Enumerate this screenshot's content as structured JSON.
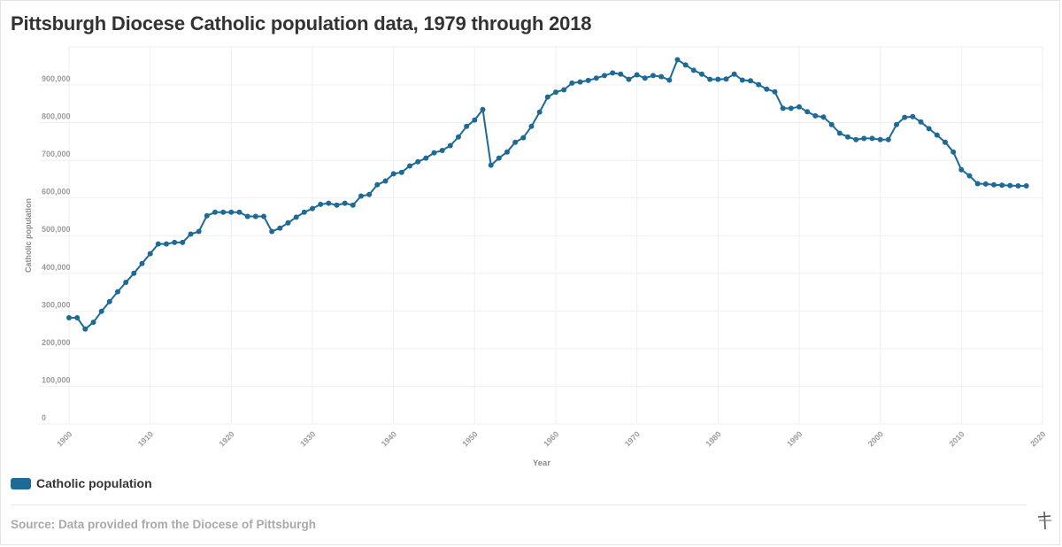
{
  "title": "Pittsburgh Diocese Catholic population data, 1979 through 2018",
  "legend": {
    "label": "Catholic population",
    "color": "#1d6a96"
  },
  "source": "Source: Data provided from the Diocese of Pittsburgh",
  "logo_icon": "flourish-logo-icon",
  "chart_data": {
    "type": "line",
    "title": "Pittsburgh Diocese Catholic population data, 1979 through 2018",
    "xlabel": "Year",
    "ylabel": "Catholic population",
    "xlim": [
      1900,
      2020
    ],
    "ylim": [
      0,
      1000000
    ],
    "x_ticks": [
      1900,
      1910,
      1920,
      1930,
      1940,
      1950,
      1960,
      1970,
      1980,
      1990,
      2000,
      2010,
      2020
    ],
    "x_tick_labels": [
      "1900",
      "1910",
      "1920",
      "1930",
      "1940",
      "1950",
      "1960",
      "1970",
      "1980",
      "1990",
      "2000",
      "2010",
      "2020"
    ],
    "y_ticks": [
      0,
      100000,
      200000,
      300000,
      400000,
      500000,
      600000,
      700000,
      800000,
      900000
    ],
    "y_tick_labels": [
      "0",
      "100,000",
      "200,000",
      "300,000",
      "400,000",
      "500,000",
      "600,000",
      "700,000",
      "800,000",
      "900,000"
    ],
    "grid": true,
    "legend_position": "bottom-left",
    "series": [
      {
        "name": "Catholic population",
        "color": "#1d6a96",
        "x": [
          1900,
          1901,
          1902,
          1903,
          1904,
          1905,
          1906,
          1907,
          1908,
          1909,
          1910,
          1911,
          1912,
          1913,
          1914,
          1915,
          1916,
          1917,
          1918,
          1919,
          1920,
          1921,
          1922,
          1923,
          1924,
          1925,
          1926,
          1927,
          1928,
          1929,
          1930,
          1931,
          1932,
          1933,
          1934,
          1935,
          1936,
          1937,
          1938,
          1939,
          1940,
          1941,
          1942,
          1943,
          1944,
          1945,
          1946,
          1947,
          1948,
          1949,
          1950,
          1951,
          1952,
          1953,
          1954,
          1955,
          1956,
          1957,
          1958,
          1959,
          1960,
          1961,
          1962,
          1963,
          1964,
          1965,
          1966,
          1967,
          1968,
          1969,
          1970,
          1971,
          1972,
          1973,
          1974,
          1975,
          1976,
          1977,
          1978,
          1979,
          1980,
          1981,
          1982,
          1983,
          1984,
          1985,
          1986,
          1987,
          1988,
          1989,
          1990,
          1991,
          1992,
          1993,
          1994,
          1995,
          1996,
          1997,
          1998,
          1999,
          2000,
          2001,
          2002,
          2003,
          2004,
          2005,
          2006,
          2007,
          2008,
          2009,
          2010,
          2011,
          2012,
          2013,
          2014,
          2015,
          2016,
          2017,
          2018
        ],
        "values": [
          282000,
          282000,
          252000,
          270000,
          299000,
          325000,
          351000,
          376000,
          400000,
          426000,
          452000,
          478000,
          478000,
          482000,
          482000,
          504000,
          511000,
          553000,
          562000,
          562000,
          562000,
          562000,
          551000,
          551000,
          551000,
          511000,
          520000,
          534000,
          549000,
          562000,
          572000,
          583000,
          586000,
          581000,
          586000,
          581000,
          605000,
          609000,
          635000,
          645000,
          664000,
          668000,
          685000,
          696000,
          706000,
          720000,
          726000,
          739000,
          762000,
          790000,
          807000,
          835000,
          687000,
          706000,
          722000,
          748000,
          760000,
          790000,
          828000,
          868000,
          881000,
          887000,
          905000,
          908000,
          912000,
          918000,
          925000,
          932000,
          929000,
          915000,
          927000,
          918000,
          925000,
          922000,
          913000,
          967000,
          953000,
          939000,
          929000,
          915000,
          915000,
          916000,
          929000,
          913000,
          911000,
          901000,
          889000,
          882000,
          838000,
          838000,
          842000,
          829000,
          818000,
          815000,
          795000,
          772000,
          762000,
          755000,
          758000,
          758000,
          755000,
          755000,
          795000,
          814000,
          816000,
          802000,
          784000,
          767000,
          748000,
          722000,
          675000,
          659000,
          638000,
          637000,
          635000,
          634000,
          633000,
          632000,
          632000
        ]
      }
    ]
  }
}
